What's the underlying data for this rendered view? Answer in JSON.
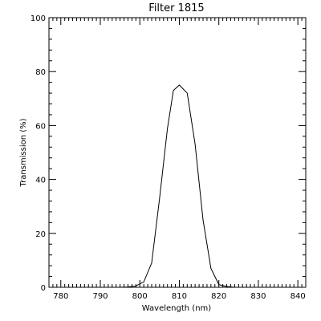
{
  "chart_data": {
    "type": "line",
    "title": "Filter 1815",
    "xlabel": "Wavelength (nm)",
    "ylabel": "Transmission (%)",
    "xlim": [
      777,
      842
    ],
    "ylim": [
      0,
      100
    ],
    "xticks": [
      780,
      790,
      800,
      810,
      820,
      830,
      840
    ],
    "yticks": [
      0,
      20,
      40,
      60,
      80,
      100
    ],
    "xtick_labels": [
      "780",
      "790",
      "800",
      "810",
      "820",
      "830",
      "840"
    ],
    "ytick_labels": [
      "0",
      "20",
      "40",
      "60",
      "80",
      "100"
    ],
    "x_minor_step": 1,
    "y_minor_step": 4,
    "grid": false,
    "line_color": "#000000",
    "series": [
      {
        "x": [
          795,
          797,
          799,
          801,
          803,
          805,
          807,
          808.5,
          810,
          812,
          814,
          816,
          818,
          820,
          822,
          824
        ],
        "y": [
          0,
          0.1,
          0.5,
          2,
          9,
          33,
          59,
          73,
          75,
          72,
          53,
          25,
          7,
          1,
          0.3,
          0
        ]
      }
    ]
  }
}
